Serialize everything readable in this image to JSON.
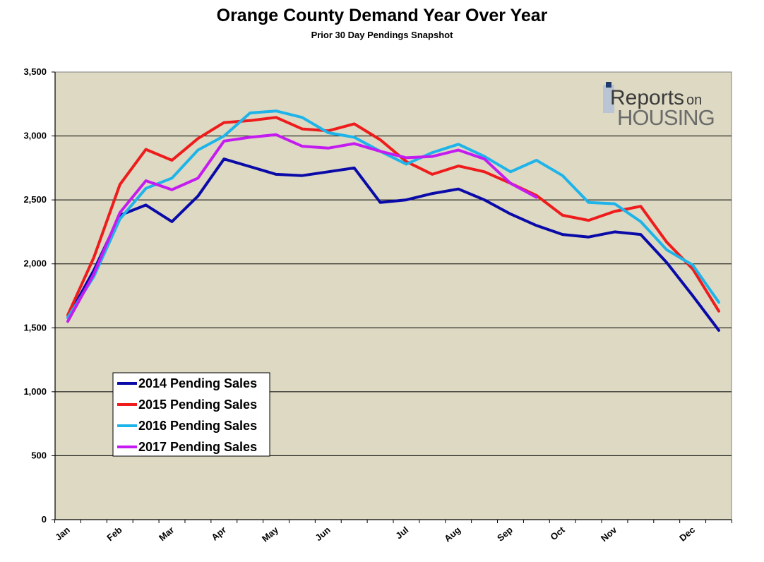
{
  "chart_data": {
    "type": "line",
    "title": "Orange County Demand Year Over Year",
    "subtitle": "Prior 30 Day Pendings Snapshot",
    "xlabel": "",
    "ylabel": "",
    "ylim": [
      0,
      3500
    ],
    "yticks": [
      0,
      500,
      1000,
      1500,
      2000,
      2500,
      3000,
      3500
    ],
    "ytick_labels": [
      "0",
      "500",
      "1,000",
      "1,500",
      "2,000",
      "2,500",
      "3,000",
      "3,500"
    ],
    "x_points": 26,
    "month_labels": [
      {
        "label": "Jan",
        "index": 0
      },
      {
        "label": "Feb",
        "index": 2
      },
      {
        "label": "Mar",
        "index": 4
      },
      {
        "label": "Apr",
        "index": 6
      },
      {
        "label": "May",
        "index": 8
      },
      {
        "label": "Jun",
        "index": 10
      },
      {
        "label": "Jul",
        "index": 13
      },
      {
        "label": "Aug",
        "index": 15
      },
      {
        "label": "Sep",
        "index": 17
      },
      {
        "label": "Oct",
        "index": 19
      },
      {
        "label": "Nov",
        "index": 21
      },
      {
        "label": "Dec",
        "index": 24
      }
    ],
    "grid": true,
    "legend_position": "bottom-left",
    "series": [
      {
        "name": "2014 Pending Sales",
        "color": "#0a0aa8",
        "values": [
          1580,
          1950,
          2380,
          2460,
          2330,
          2530,
          2820,
          2760,
          2700,
          2690,
          2720,
          2750,
          2480,
          2500,
          2550,
          2585,
          2500,
          2390,
          2300,
          2230,
          2210,
          2250,
          2230,
          2010,
          1750,
          1480
        ]
      },
      {
        "name": "2015 Pending Sales",
        "color": "#ee1c1c",
        "values": [
          1600,
          2050,
          2620,
          2895,
          2810,
          2980,
          3105,
          3120,
          3145,
          3055,
          3040,
          3095,
          2970,
          2800,
          2700,
          2765,
          2720,
          2630,
          2535,
          2380,
          2340,
          2410,
          2450,
          2170,
          1960,
          1630
        ]
      },
      {
        "name": "2016 Pending Sales",
        "color": "#1eb4ea",
        "values": [
          1580,
          1900,
          2350,
          2590,
          2670,
          2890,
          3000,
          3180,
          3195,
          3145,
          3025,
          2990,
          2880,
          2780,
          2870,
          2935,
          2840,
          2720,
          2810,
          2690,
          2480,
          2470,
          2330,
          2110,
          1990,
          1700
        ]
      },
      {
        "name": "2017 Pending Sales",
        "color": "#c41cf0",
        "values": [
          1550,
          1920,
          2400,
          2650,
          2580,
          2670,
          2960,
          2990,
          3010,
          2920,
          2905,
          2940,
          2880,
          2830,
          2840,
          2890,
          2820,
          2630,
          2520
        ]
      }
    ]
  },
  "logo": {
    "word_reports": "Reports",
    "word_on": "on",
    "word_housing": "HOUSING"
  }
}
